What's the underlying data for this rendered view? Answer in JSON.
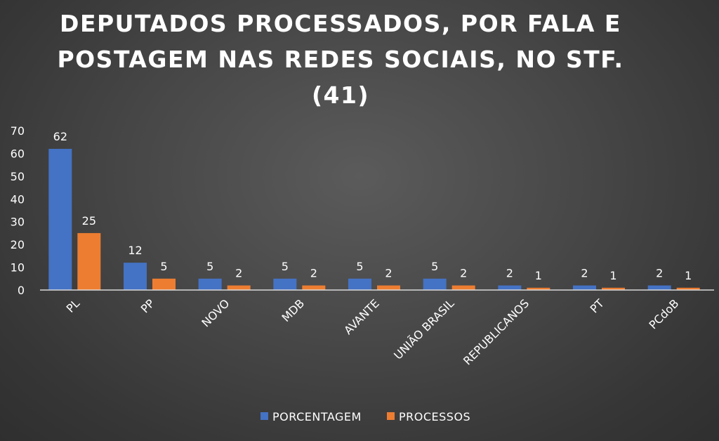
{
  "chart_data": {
    "type": "bar",
    "title": "DEPUTADOS PROCESSADOS, POR FALA E POSTAGEM NAS REDES SOCIAIS, NO STF. (41)",
    "categories": [
      "PL",
      "PP",
      "NOVO",
      "MDB",
      "AVANTE",
      "UNIÃO BRASIL",
      "REPUBLICANOS",
      "PT",
      "PCdoB"
    ],
    "series": [
      {
        "name": "PORCENTAGEM",
        "values": [
          62,
          12,
          5,
          5,
          5,
          5,
          2,
          2,
          2
        ],
        "color": "#4472c4"
      },
      {
        "name": "PROCESSOS",
        "values": [
          25,
          5,
          2,
          2,
          2,
          2,
          1,
          1,
          1
        ],
        "color": "#ed7d31"
      }
    ],
    "ylim": [
      0,
      70
    ],
    "yticks": [
      0,
      10,
      20,
      30,
      40,
      50,
      60,
      70
    ],
    "grid": false,
    "legend_position": "bottom",
    "data_labels": true
  }
}
